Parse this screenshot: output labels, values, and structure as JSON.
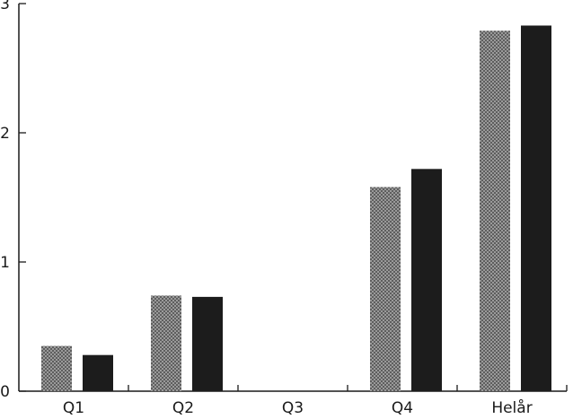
{
  "chart_data": {
    "type": "bar",
    "title": "",
    "xlabel": "",
    "ylabel": "",
    "categories": [
      "Q1",
      "Q2",
      "Q3",
      "Q4",
      "Helår"
    ],
    "series": [
      {
        "values": [
          0.35,
          0.74,
          0.0,
          1.58,
          2.79
        ],
        "color": "#8c8c8c",
        "pattern": "checkered"
      },
      {
        "values": [
          0.28,
          0.73,
          0.0,
          1.72,
          2.83
        ],
        "color": "#1c1c1c",
        "pattern": "solid"
      }
    ],
    "ylim": [
      0,
      3
    ],
    "yticks": [
      "0",
      "1",
      "2",
      "3"
    ],
    "grid": false,
    "legend": "none"
  }
}
